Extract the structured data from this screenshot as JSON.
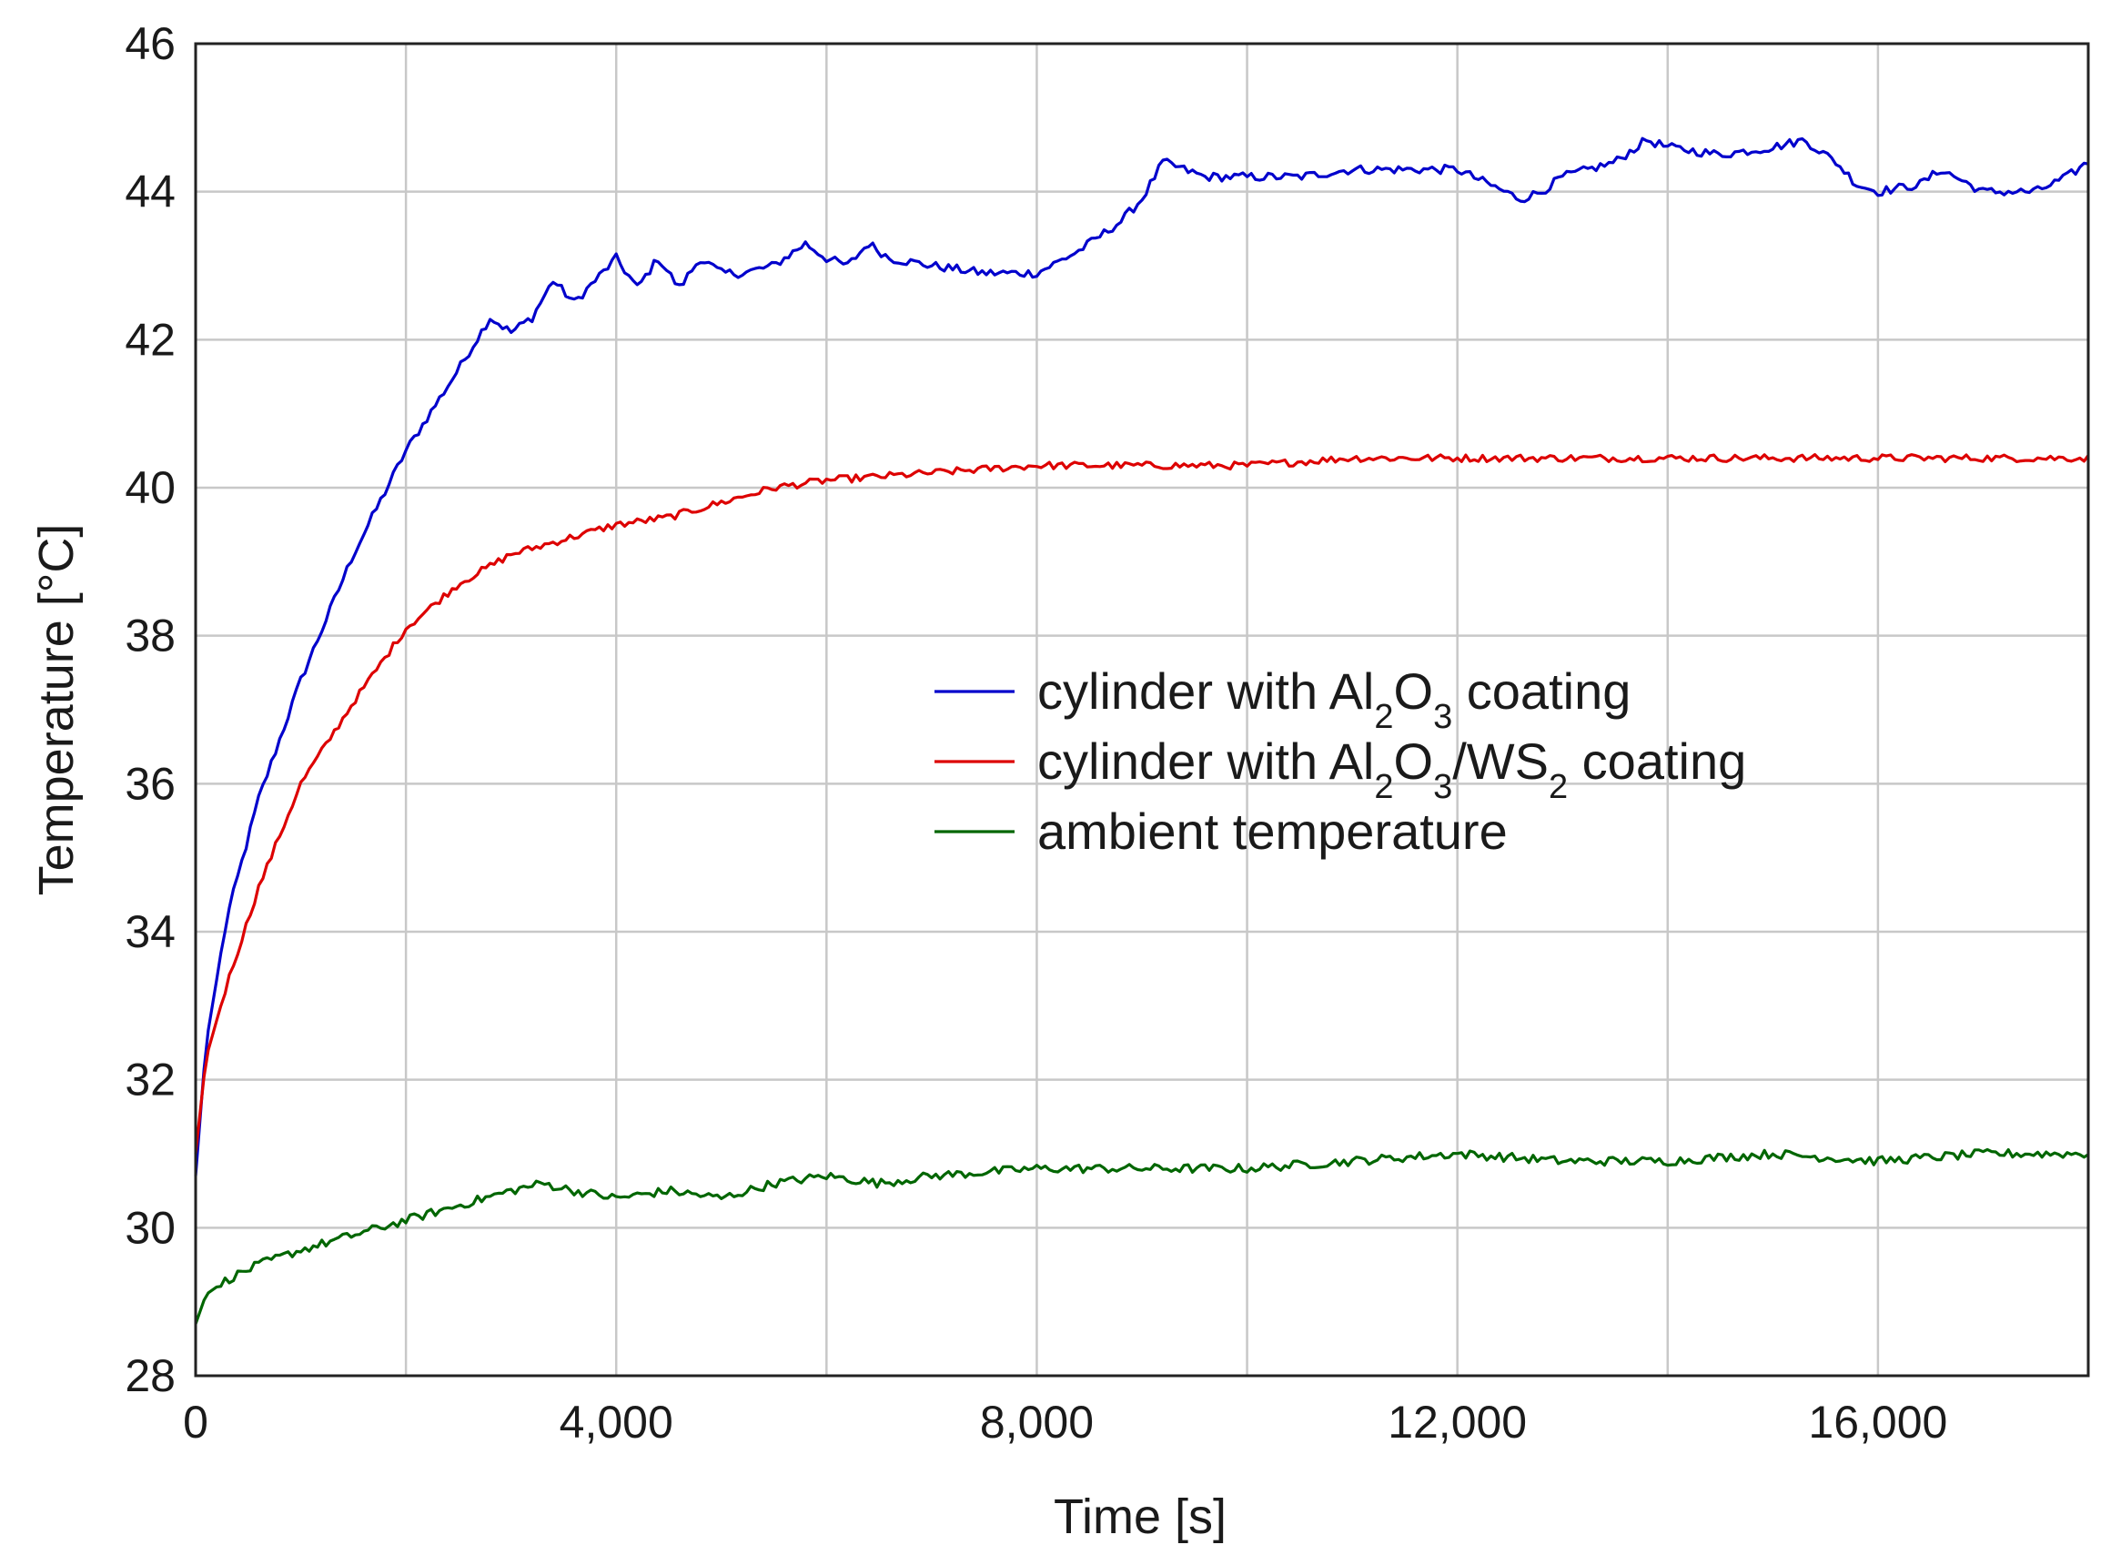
{
  "chart_data": {
    "type": "line",
    "title": "",
    "xlabel": "Time [s]",
    "ylabel": "Temperature [°C]",
    "xlim": [
      0,
      18000
    ],
    "ylim": [
      28,
      46
    ],
    "x_ticks": [
      0,
      4000,
      8000,
      12000,
      16000
    ],
    "x_tick_labels": [
      "0",
      "4,000",
      "8,000",
      "12,000",
      "16,000"
    ],
    "y_ticks": [
      28,
      30,
      32,
      34,
      36,
      38,
      40,
      42,
      44,
      46
    ],
    "y_tick_labels": [
      "28",
      "30",
      "32",
      "34",
      "36",
      "38",
      "40",
      "42",
      "44",
      "46"
    ],
    "grid": true,
    "legend_position": "center-right",
    "series": [
      {
        "name": "cylinder with Al2O3 coating",
        "color": "#0000cc",
        "x": [
          0,
          100,
          300,
          600,
          1000,
          1500,
          2000,
          2500,
          2800,
          3000,
          3200,
          3400,
          3600,
          3800,
          4000,
          4200,
          4400,
          4600,
          4800,
          5000,
          5200,
          5500,
          5800,
          6000,
          6200,
          6400,
          6600,
          7000,
          7500,
          8000,
          8400,
          8800,
          9000,
          9200,
          9400,
          9600,
          10000,
          10500,
          11000,
          11500,
          12000,
          12300,
          12600,
          12800,
          13000,
          13500,
          13800,
          14000,
          14500,
          15000,
          15300,
          15600,
          15800,
          16000,
          16400,
          16600,
          17000,
          17500,
          17800,
          18000
        ],
        "y": [
          30.7,
          32.5,
          34.2,
          35.8,
          37.4,
          39.1,
          40.5,
          41.6,
          42.3,
          42.1,
          42.3,
          42.8,
          42.5,
          42.8,
          43.1,
          42.7,
          43.1,
          42.7,
          43.1,
          42.9,
          42.9,
          43.0,
          43.3,
          43.1,
          43.0,
          43.3,
          43.1,
          43.0,
          42.9,
          42.9,
          43.2,
          43.6,
          43.9,
          44.4,
          44.3,
          44.2,
          44.2,
          44.2,
          44.3,
          44.3,
          44.3,
          44.1,
          43.9,
          44.0,
          44.2,
          44.4,
          44.7,
          44.6,
          44.5,
          44.6,
          44.7,
          44.4,
          44.1,
          44.0,
          44.1,
          44.3,
          44.0,
          44.0,
          44.2,
          44.4
        ]
      },
      {
        "name": "cylinder with Al2O3/WS2 coating",
        "color": "#dd0000",
        "x": [
          0,
          100,
          300,
          600,
          1000,
          1500,
          2000,
          2500,
          3000,
          3500,
          4000,
          4500,
          5000,
          5500,
          6000,
          7000,
          8000,
          9000,
          10000,
          11000,
          12000,
          13000,
          14000,
          15000,
          16000,
          17000,
          18000
        ],
        "y": [
          31.0,
          32.3,
          33.3,
          34.6,
          36.0,
          37.1,
          38.1,
          38.7,
          39.1,
          39.3,
          39.5,
          39.6,
          39.8,
          40.0,
          40.1,
          40.2,
          40.3,
          40.3,
          40.3,
          40.4,
          40.4,
          40.4,
          40.4,
          40.4,
          40.4,
          40.4,
          40.4
        ]
      },
      {
        "name": "ambient temperature",
        "color": "#006600",
        "x": [
          0,
          100,
          300,
          600,
          1000,
          1500,
          2000,
          2500,
          3000,
          3300,
          3600,
          4000,
          4500,
          5000,
          5500,
          6000,
          6500,
          7000,
          8000,
          9000,
          10000,
          11000,
          12000,
          13000,
          14000,
          15000,
          16000,
          17000,
          18000
        ],
        "y": [
          28.7,
          29.1,
          29.3,
          29.5,
          29.7,
          29.9,
          30.1,
          30.3,
          30.5,
          30.6,
          30.5,
          30.4,
          30.5,
          30.4,
          30.6,
          30.7,
          30.6,
          30.7,
          30.8,
          30.8,
          30.8,
          30.9,
          31.0,
          30.9,
          30.9,
          31.0,
          30.9,
          31.0,
          31.0
        ]
      }
    ]
  },
  "legend": {
    "items": [
      {
        "prefix": "cylinder with Al",
        "sub1": "2",
        "mid1": "O",
        "sub2": "3",
        "mid2": " coating",
        "sub3": "",
        "suffix": ""
      },
      {
        "prefix": "cylinder with Al",
        "sub1": "2",
        "mid1": "O",
        "sub2": "3",
        "mid2": "/WS",
        "sub3": "2",
        "suffix": " coating"
      },
      {
        "prefix": "ambient temperature",
        "sub1": "",
        "mid1": "",
        "sub2": "",
        "mid2": "",
        "sub3": "",
        "suffix": ""
      }
    ]
  }
}
